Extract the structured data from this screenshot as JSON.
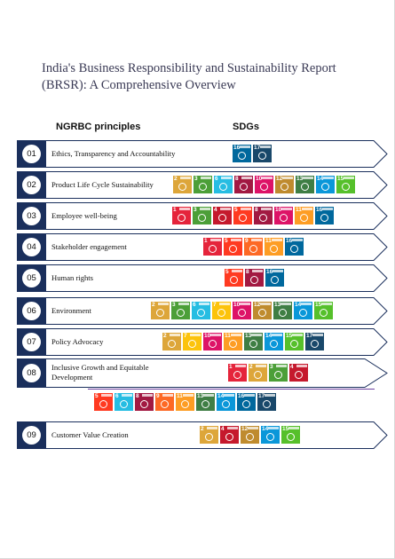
{
  "document": {
    "title": "India's Business Responsibility and Sustainability Report (BRSR): A Comprehensive Overview",
    "col_left": "NGRBC principles",
    "col_right": "SDGs"
  },
  "sdg_colors": {
    "1": "#e5243b",
    "2": "#dda63a",
    "3": "#4c9f38",
    "4": "#c5192d",
    "5": "#ff3a21",
    "6": "#26bde2",
    "7": "#fcc30b",
    "8": "#a21942",
    "9": "#fd6925",
    "10": "#dd1367",
    "11": "#fd9d24",
    "12": "#bf8b2e",
    "13": "#3f7e44",
    "14": "#0a97d9",
    "15": "#56c02b",
    "16": "#00689d",
    "17": "#19486a"
  },
  "rows": [
    {
      "num": "01",
      "label": "Ethics, Transparency and Accountability",
      "sdgs": [
        "16",
        "17"
      ]
    },
    {
      "num": "02",
      "label": "Product Life Cycle Sustainability",
      "sdgs": [
        "2",
        "3",
        "6",
        "8",
        "10",
        "12",
        "13",
        "14",
        "15"
      ]
    },
    {
      "num": "03",
      "label": "Employee well-being",
      "sdgs": [
        "1",
        "3",
        "4",
        "5",
        "8",
        "10",
        "11",
        "16"
      ]
    },
    {
      "num": "04",
      "label": "Stakeholder engagement",
      "sdgs": [
        "1",
        "5",
        "9",
        "11",
        "16"
      ]
    },
    {
      "num": "05",
      "label": "Human rights",
      "sdgs": [
        "5",
        "8",
        "16"
      ]
    },
    {
      "num": "06",
      "label": "Environment",
      "sdgs": [
        "2",
        "3",
        "6",
        "7",
        "10",
        "12",
        "13",
        "14",
        "15"
      ]
    },
    {
      "num": "07",
      "label": "Policy Advocacy",
      "sdgs": [
        "2",
        "7",
        "10",
        "11",
        "13",
        "14",
        "15",
        "17"
      ]
    },
    {
      "num": "08",
      "label": "Inclusive Growth and Equitable Development",
      "sdgs": [
        "1",
        "2",
        "3",
        "4"
      ],
      "sdgs_extra": [
        "5",
        "6",
        "8",
        "9",
        "11",
        "13",
        "14",
        "16",
        "17"
      ]
    },
    {
      "num": "09",
      "label": "Customer Value Creation",
      "sdgs": [
        "2",
        "4",
        "12",
        "14",
        "15"
      ]
    }
  ]
}
